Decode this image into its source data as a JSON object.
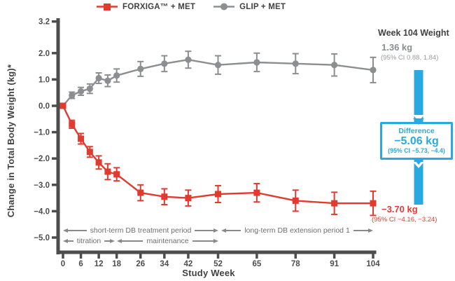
{
  "legend": {
    "items": [
      {
        "label": "FORXIGA™ + MET",
        "color": "#E13B30",
        "marker": "square"
      },
      {
        "label": "GLIP + MET",
        "color": "#8C8E91",
        "marker": "circle"
      }
    ]
  },
  "chart_data": {
    "type": "line",
    "title": "",
    "xlabel": "Study Week",
    "ylabel": "Change in Total Body Weight (kg)*",
    "x": [
      0,
      3,
      6,
      9,
      12,
      15,
      18,
      26,
      34,
      42,
      52,
      65,
      78,
      91,
      104
    ],
    "x_ticks": [
      0,
      6,
      12,
      18,
      26,
      34,
      42,
      52,
      65,
      78,
      91,
      104
    ],
    "x_tick_labels": [
      "0",
      "6",
      "12",
      "18",
      "26",
      "34",
      "42",
      "52",
      "65",
      "78",
      "91",
      "104"
    ],
    "y_ticks": [
      3.2,
      2.0,
      1.0,
      0.0,
      -1.0,
      -2.0,
      -3.0,
      -4.0,
      -5.0
    ],
    "y_tick_labels": [
      "3.2",
      "2.0",
      "1.0",
      "0.0",
      "−1.0",
      "−2.0",
      "−3.0",
      "−4.0",
      "−5.0"
    ],
    "ylim": [
      -5.0,
      3.2
    ],
    "grid": false,
    "legend_position": "top",
    "error_bars": true,
    "series": [
      {
        "name": "FORXIGA™ + MET",
        "color": "#E13B30",
        "marker": "square",
        "values": [
          0.0,
          -0.7,
          -1.25,
          -1.75,
          -2.15,
          -2.5,
          -2.6,
          -3.3,
          -3.45,
          -3.5,
          -3.35,
          -3.3,
          -3.6,
          -3.7,
          -3.7
        ],
        "errors": [
          0,
          0.15,
          0.2,
          0.2,
          0.25,
          0.3,
          0.25,
          0.3,
          0.3,
          0.3,
          0.32,
          0.35,
          0.4,
          0.42,
          0.46
        ]
      },
      {
        "name": "GLIP + MET",
        "color": "#8C8E91",
        "marker": "circle",
        "values": [
          0.0,
          0.4,
          0.55,
          0.65,
          1.05,
          0.95,
          1.15,
          1.4,
          1.6,
          1.75,
          1.55,
          1.65,
          1.6,
          1.55,
          1.36
        ],
        "errors": [
          0,
          0.12,
          0.15,
          0.18,
          0.2,
          0.22,
          0.25,
          0.28,
          0.3,
          0.32,
          0.35,
          0.35,
          0.38,
          0.42,
          0.48
        ]
      }
    ]
  },
  "right_panel": {
    "title": "Week 104 Weight",
    "glip_value": "1.36 kg",
    "glip_ci": "(95% CI 0.88, 1.84)",
    "difference_label": "Difference",
    "difference_value": "−5.06 kg",
    "difference_ci": "(95% CI −5.73, −4.4)",
    "forxiga_value": "−3.70 kg",
    "forxiga_ci": "(95% CI −4.16, −3.24)"
  },
  "periods": {
    "short_term": "short-term DB treatment period",
    "long_term": "long-term DB extension period 1",
    "titration": "titration",
    "maintenance": "maintenance"
  },
  "colors": {
    "forxiga_red": "#E13B30",
    "glip_gray": "#8C8E91",
    "axis": "#4D4D4F",
    "accent_blue": "#29A9E0",
    "text_dark": "#414042",
    "text_gray": "#6D6E71",
    "text_light": "#9A9C9E"
  }
}
